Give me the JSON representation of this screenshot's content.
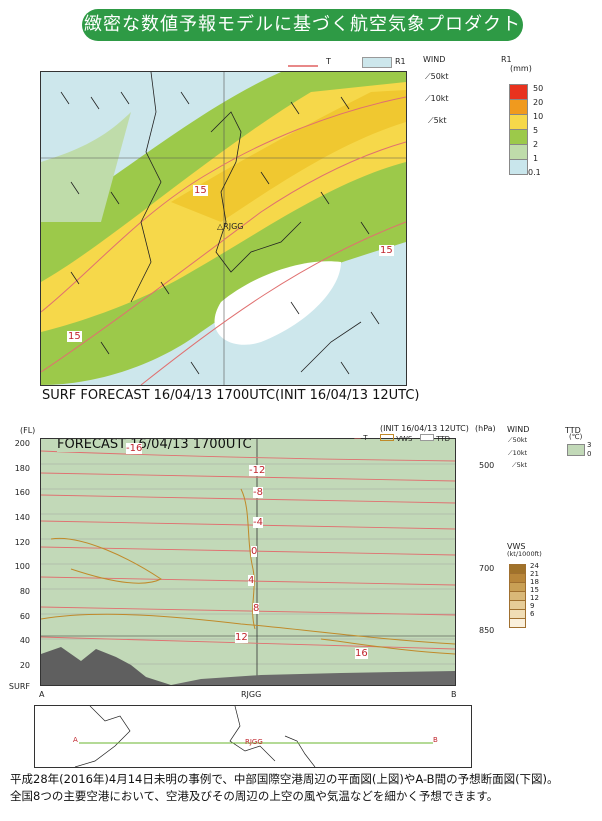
{
  "banner": {
    "title": "緻密な数値予報モデルに基づく航空気象プロダクト"
  },
  "top_map": {
    "legend_T": "T",
    "legend_R1": "R1",
    "wind_title": "WIND",
    "wind_50": "50kt",
    "wind_10": "10kt",
    "wind_5": "5kt",
    "r1_title": "R1",
    "r1_unit": "(mm)",
    "r1_levels": [
      "50",
      "20",
      "10",
      "5",
      "2",
      "1",
      "0.1"
    ],
    "r1_colors": [
      "#e8321e",
      "#f09a1e",
      "#f6d84a",
      "#9cc94a",
      "#bfdcaa",
      "#c9e6ec"
    ],
    "contour_labels": [
      "15",
      "15",
      "15"
    ],
    "station": "RJGG",
    "caption": "SURF FORECAST 16/04/13 1700UTC(INIT 16/04/13 12UTC)"
  },
  "cross_section": {
    "title": "FORECAST 16/04/13 1700UTC",
    "init": "(INIT 16/04/13 12UTC)",
    "legend_T": "T",
    "legend_VWS": "VWS",
    "legend_TTD": "TTD",
    "fl_unit": "(FL)",
    "hpa_unit": "(hPa)",
    "fl_ticks": [
      "200",
      "180",
      "160",
      "140",
      "120",
      "100",
      "80",
      "60",
      "40",
      "20",
      "SURF"
    ],
    "hpa_ticks": [
      "500",
      "700",
      "850"
    ],
    "temp_labels": [
      "-16",
      "-12",
      "-8",
      "-4",
      "0",
      "4",
      "8",
      "12",
      "16"
    ],
    "wind_title": "WIND",
    "wind_50": "50kt",
    "wind_10": "10kt",
    "wind_5": "5kt",
    "ttd_title": "TTD",
    "ttd_unit": "(℃)",
    "ttd_levels": [
      "3",
      "0"
    ],
    "vws_title": "VWS",
    "vws_unit": "(kt/1000ft)",
    "vws_levels": [
      "24",
      "21",
      "18",
      "15",
      "12",
      "9",
      "6"
    ],
    "vws_colors": [
      "#a0722a",
      "#b8863a",
      "#c9a055",
      "#d9b878",
      "#e6cc98",
      "#f0ddb5",
      "#faf0dc"
    ],
    "point_a": "A",
    "point_rjgg": "RJGG",
    "point_b": "B"
  },
  "inset_map": {
    "point_a": "A",
    "point_rjgg": "RJGG",
    "point_b": "B"
  },
  "caption": {
    "line1": "平成28年(2016年)4月14日未明の事例で、中部国際空港周辺の平面図(上図)やA-B間の予想断面図(下図)。",
    "line2": "全国8つの主要空港において、空港及びその周辺の上空の風や気温などを細かく予想できます。"
  }
}
